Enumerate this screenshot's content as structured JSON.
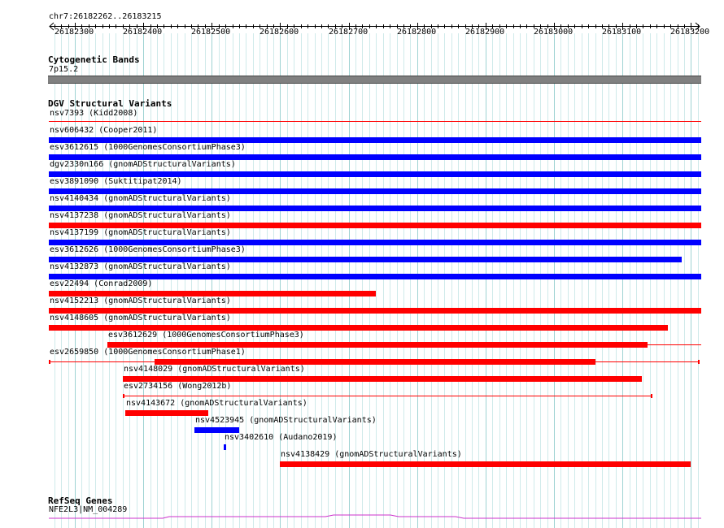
{
  "position_label": "chr7:26182262..26183215",
  "ruler": {
    "start": 26182262,
    "end": 26183215,
    "ticks": [
      "26182300",
      "26182400",
      "26182500",
      "26182600",
      "26182700",
      "26182800",
      "26182900",
      "26183000",
      "26183100",
      "26183200"
    ]
  },
  "tracks": {
    "cytoband": {
      "title": "Cytogenetic Bands",
      "label": "7p15.2",
      "color": "#808080"
    },
    "dgv": {
      "title": "DGV Structural Variants",
      "features": [
        {
          "label": "nsv7393 (Kidd2008)",
          "start": 26182262,
          "end": 26183215,
          "color": "#ff0000",
          "style": "thin"
        },
        {
          "label": "nsv606432 (Cooper2011)",
          "start": 26182262,
          "end": 26183215,
          "color": "#0000ff",
          "style": "thick"
        },
        {
          "label": "esv3612615 (1000GenomesConsortiumPhase3)",
          "start": 26182262,
          "end": 26183215,
          "color": "#0000ff",
          "style": "thick"
        },
        {
          "label": "dgv2330n166 (gnomADStructuralVariants)",
          "start": 26182262,
          "end": 26183215,
          "color": "#0000ff",
          "style": "thick"
        },
        {
          "label": "esv3891090 (Suktitipat2014)",
          "start": 26182262,
          "end": 26183215,
          "color": "#0000ff",
          "style": "thick"
        },
        {
          "label": "nsv4140434 (gnomADStructuralVariants)",
          "start": 26182262,
          "end": 26183215,
          "color": "#0000ff",
          "style": "thick"
        },
        {
          "label": "nsv4137238 (gnomADStructuralVariants)",
          "start": 26182262,
          "end": 26183215,
          "color": "#ff0000",
          "style": "thick"
        },
        {
          "label": "nsv4137199 (gnomADStructuralVariants)",
          "start": 26182262,
          "end": 26183215,
          "color": "#0000ff",
          "style": "thick"
        },
        {
          "label": "esv3612626 (1000GenomesConsortiumPhase3)",
          "start": 26182262,
          "end": 26183187,
          "color": "#0000ff",
          "style": "thick"
        },
        {
          "label": "nsv4132873 (gnomADStructuralVariants)",
          "start": 26182262,
          "end": 26183215,
          "color": "#0000ff",
          "style": "thick"
        },
        {
          "label": "esv22494 (Conrad2009)",
          "start": 26182262,
          "end": 26182740,
          "color": "#ff0000",
          "style": "thick"
        },
        {
          "label": "nsv4152213 (gnomADStructuralVariants)",
          "start": 26182262,
          "end": 26183215,
          "color": "#ff0000",
          "style": "thick"
        },
        {
          "label": "nsv4148605 (gnomADStructuralVariants)",
          "start": 26182262,
          "end": 26183166,
          "color": "#ff0000",
          "style": "thick"
        },
        {
          "label": "esv3612629 (1000GenomesConsortiumPhase3)",
          "start": 26182347,
          "end": 26183137,
          "color": "#ff0000",
          "style": "thick-with-line"
        },
        {
          "label": "esv2659850 (1000GenomesConsortiumPhase1)",
          "start": 26182262,
          "end": 26183211,
          "color": "#ff0000",
          "style": "capped",
          "thick_start": 26182417,
          "thick_end": 26183060
        },
        {
          "label": "nsv4148029 (gnomADStructuralVariants)",
          "start": 26182370,
          "end": 26183128,
          "color": "#ff0000",
          "style": "thick"
        },
        {
          "label": "esv2734156 (Wong2012b)",
          "start": 26182370,
          "end": 26183142,
          "color": "#ff0000",
          "style": "thin-capped"
        },
        {
          "label": "nsv4143672 (gnomADStructuralVariants)",
          "start": 26182374,
          "end": 26182495,
          "color": "#ff0000",
          "style": "thick"
        },
        {
          "label": "nsv4523945 (gnomADStructuralVariants)",
          "start": 26182475,
          "end": 26182540,
          "color": "#0000ff",
          "style": "thick"
        },
        {
          "label": "nsv3402610 (Audano2019)",
          "start": 26182518,
          "end": 26182521,
          "color": "#0000ff",
          "style": "thick"
        },
        {
          "label": "nsv4138429 (gnomADStructuralVariants)",
          "start": 26182600,
          "end": 26183199,
          "color": "#ff0000",
          "style": "thick"
        }
      ]
    },
    "refseq": {
      "title": "RefSeq Genes",
      "label": "NFE2L3|NM_004289",
      "color": "#cc33cc"
    }
  }
}
